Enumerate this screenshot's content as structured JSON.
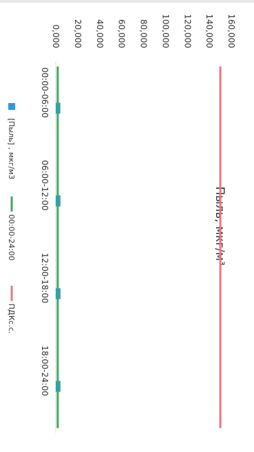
{
  "chart_data": {
    "type": "bar",
    "title": "Пыль, мкг/м³",
    "categories": [
      "00:00-06:00",
      "06:00-12:00",
      "12:00-18:00",
      "18:00-24:00"
    ],
    "ytick_labels": [
      "0,000",
      "20,000",
      "40,000",
      "60,000",
      "80,000",
      "100,000",
      "120,000",
      "140,000",
      "160,000"
    ],
    "ylim": [
      0,
      160
    ],
    "grid": false,
    "orientation": "rotated-90-clockwise",
    "series": [
      {
        "name": "[Пыль] , мкг/м3",
        "kind": "bar",
        "color": "#2f9ae3",
        "values": [
          4.2,
          4.3,
          4.3,
          4.3
        ]
      },
      {
        "name": "00:00-24:00",
        "kind": "line",
        "color": "#3caa63",
        "values": [
          1.8,
          1.8,
          1.8,
          1.8
        ]
      },
      {
        "name": "ПДКс.с.",
        "kind": "line",
        "color": "#e8787c",
        "values": [
          150,
          150,
          150,
          150
        ]
      }
    ],
    "legend_position": "bottom"
  }
}
